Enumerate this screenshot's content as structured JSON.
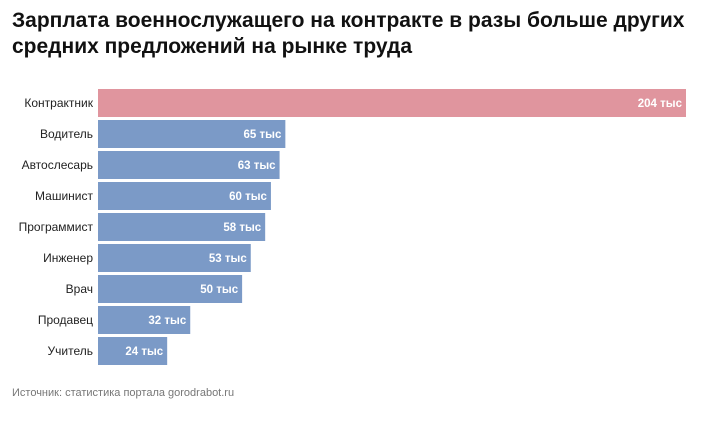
{
  "title": "Зарплата военнослужащего на контракте в разы больше других средних предложений на рынке труда",
  "source": "Источник: статистика портала gorodrabot.ru",
  "chart_data": {
    "type": "bar",
    "orientation": "horizontal",
    "title": "Зарплата военнослужащего на контракте в разы больше других средних предложений на рынке труда",
    "categories": [
      "Контрактник",
      "Водитель",
      "Автослесарь",
      "Машинист",
      "Программист",
      "Инженер",
      "Врач",
      "Продавец",
      "Учитель"
    ],
    "values": [
      204,
      65,
      63,
      60,
      58,
      53,
      50,
      32,
      24
    ],
    "value_labels": [
      "204 тыс",
      "65 тыс",
      "63 тыс",
      "60 тыс",
      "58 тыс",
      "53 тыс",
      "50 тыс",
      "32 тыс",
      "24 тыс"
    ],
    "unit": "тыс",
    "xlim": [
      0,
      204
    ],
    "colors": {
      "highlight": "#e0959e",
      "default": "#7b9ac7"
    },
    "highlight_index": 0,
    "grid": false,
    "legend": "none"
  }
}
